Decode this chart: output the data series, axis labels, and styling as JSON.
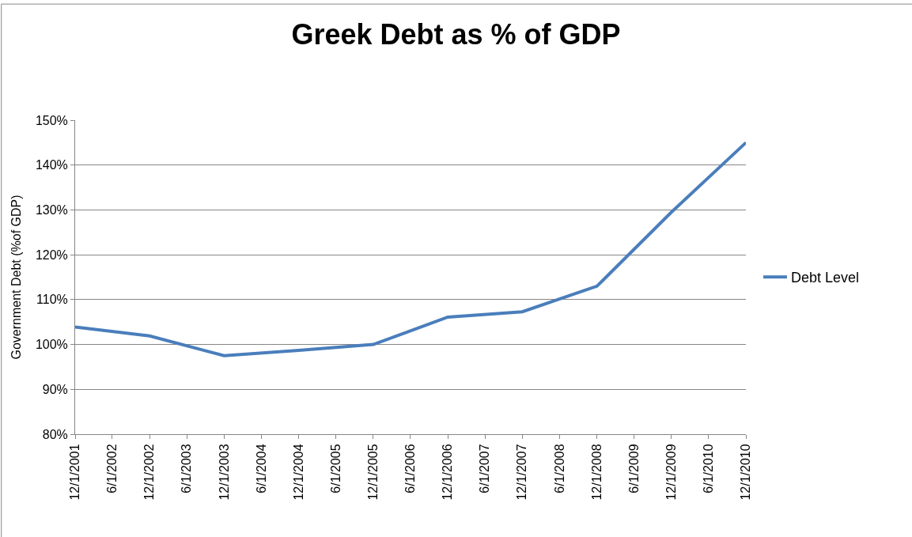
{
  "chart_data": {
    "type": "line",
    "title": "Greek Debt as % of GDP",
    "ylabel": "Government Debt (%of GDP)",
    "x": [
      "2001-12-01",
      "2002-12-01",
      "2003-12-01",
      "2004-12-01",
      "2005-12-01",
      "2006-12-01",
      "2007-12-01",
      "2008-12-01",
      "2009-12-01",
      "2010-12-01"
    ],
    "series": [
      {
        "name": "Debt Level",
        "color": "#4a7ebb",
        "values": [
          103.9,
          101.9,
          97.5,
          98.7,
          100.0,
          106.1,
          107.3,
          113.0,
          129.5,
          145.0
        ]
      }
    ],
    "xlim": [
      "2001-12-01",
      "2010-12-01"
    ],
    "xticks": [
      {
        "value": "2001-12-01",
        "label": "12/1/2001"
      },
      {
        "value": "2002-06-01",
        "label": "6/1/2002"
      },
      {
        "value": "2002-12-01",
        "label": "12/1/2002"
      },
      {
        "value": "2003-06-01",
        "label": "6/1/2003"
      },
      {
        "value": "2003-12-01",
        "label": "12/1/2003"
      },
      {
        "value": "2004-06-01",
        "label": "6/1/2004"
      },
      {
        "value": "2004-12-01",
        "label": "12/1/2004"
      },
      {
        "value": "2005-06-01",
        "label": "6/1/2005"
      },
      {
        "value": "2005-12-01",
        "label": "12/1/2005"
      },
      {
        "value": "2006-06-01",
        "label": "6/1/2006"
      },
      {
        "value": "2006-12-01",
        "label": "12/1/2006"
      },
      {
        "value": "2007-06-01",
        "label": "6/1/2007"
      },
      {
        "value": "2007-12-01",
        "label": "12/1/2007"
      },
      {
        "value": "2008-06-01",
        "label": "6/1/2008"
      },
      {
        "value": "2008-12-01",
        "label": "12/1/2008"
      },
      {
        "value": "2009-06-01",
        "label": "6/1/2009"
      },
      {
        "value": "2009-12-01",
        "label": "12/1/2009"
      },
      {
        "value": "2010-06-01",
        "label": "6/1/2010"
      },
      {
        "value": "2010-12-01",
        "label": "12/1/2010"
      }
    ],
    "ylim": [
      80,
      150
    ],
    "yticks": [
      {
        "value": 80,
        "label": "80%"
      },
      {
        "value": 90,
        "label": "90%"
      },
      {
        "value": 100,
        "label": "100%"
      },
      {
        "value": 110,
        "label": "110%"
      },
      {
        "value": 120,
        "label": "120%"
      },
      {
        "value": 130,
        "label": "130%"
      },
      {
        "value": 140,
        "label": "140%"
      },
      {
        "value": 150,
        "label": "150%"
      }
    ],
    "grid": "y",
    "legend": "right",
    "marker": "none",
    "line_style": "solid"
  }
}
